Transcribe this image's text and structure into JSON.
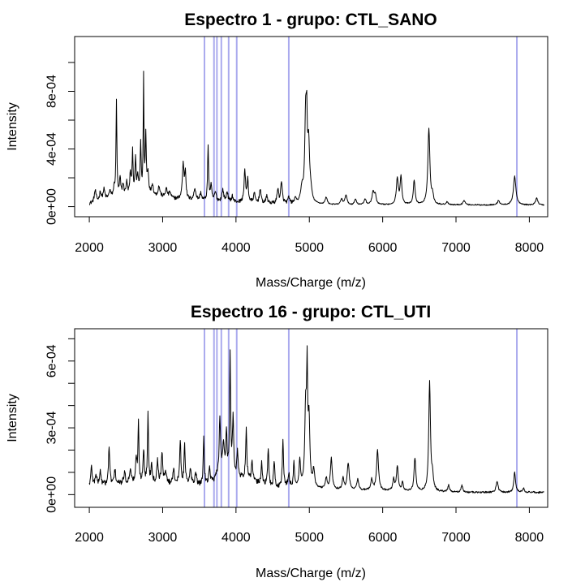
{
  "colors": {
    "spectrum": "#000000",
    "marker_lines": "#aaaaee",
    "background": "#ffffff"
  },
  "chart_data": [
    {
      "type": "line",
      "title": "Espectro  1 - grupo:  CTL_SANO",
      "xlabel": "Mass/Charge (m/z)",
      "ylabel": "Intensity",
      "xlim": [
        1800,
        8250
      ],
      "ylim": [
        -7e-05,
        0.00118
      ],
      "xticks": [
        2000,
        3000,
        4000,
        5000,
        6000,
        7000,
        8000
      ],
      "yticks": [
        0,
        0.0002,
        0.0004,
        0.0006,
        0.0008,
        0.001
      ],
      "ytick_labels": [
        {
          "value": 0,
          "label": "0e+00"
        },
        {
          "value": 0.0004,
          "label": "4e-04"
        },
        {
          "value": 0.0008,
          "label": "8e-04"
        }
      ],
      "baseline": [
        [
          2000,
          2e-05
        ],
        [
          2300,
          6e-05
        ],
        [
          2700,
          8e-05
        ],
        [
          3200,
          5e-05
        ],
        [
          3500,
          4e-05
        ],
        [
          4000,
          3e-05
        ],
        [
          4500,
          2e-05
        ],
        [
          5500,
          1e-05
        ],
        [
          6500,
          1.2e-05
        ],
        [
          8200,
          1e-05
        ]
      ],
      "peaks": [
        {
          "x": 2080,
          "h": 8e-05,
          "w": 14
        },
        {
          "x": 2150,
          "h": 6e-05,
          "w": 12
        },
        {
          "x": 2200,
          "h": 7e-05,
          "w": 14
        },
        {
          "x": 2280,
          "h": 5e-05,
          "w": 12
        },
        {
          "x": 2340,
          "h": 6e-05,
          "w": 14
        },
        {
          "x": 2370,
          "h": 0.00066,
          "w": 7
        },
        {
          "x": 2420,
          "h": 0.00012,
          "w": 10
        },
        {
          "x": 2460,
          "h": 8e-05,
          "w": 12
        },
        {
          "x": 2510,
          "h": 9e-05,
          "w": 12
        },
        {
          "x": 2560,
          "h": 0.00015,
          "w": 10
        },
        {
          "x": 2590,
          "h": 0.0003,
          "w": 8
        },
        {
          "x": 2630,
          "h": 0.00025,
          "w": 8
        },
        {
          "x": 2660,
          "h": 0.00012,
          "w": 10
        },
        {
          "x": 2700,
          "h": 0.00035,
          "w": 8
        },
        {
          "x": 2740,
          "h": 0.0008,
          "w": 6
        },
        {
          "x": 2770,
          "h": 0.0004,
          "w": 8
        },
        {
          "x": 2800,
          "h": 0.00015,
          "w": 12
        },
        {
          "x": 2860,
          "h": 8e-05,
          "w": 14
        },
        {
          "x": 2950,
          "h": 7e-05,
          "w": 16
        },
        {
          "x": 3050,
          "h": 6e-05,
          "w": 16
        },
        {
          "x": 3100,
          "h": 4e-05,
          "w": 14
        },
        {
          "x": 3280,
          "h": 0.00024,
          "w": 14
        },
        {
          "x": 3310,
          "h": 0.00018,
          "w": 10
        },
        {
          "x": 3440,
          "h": 8e-05,
          "w": 16
        },
        {
          "x": 3520,
          "h": 5e-05,
          "w": 14
        },
        {
          "x": 3620,
          "h": 0.00038,
          "w": 8
        },
        {
          "x": 3660,
          "h": 0.0001,
          "w": 12
        },
        {
          "x": 3720,
          "h": 6e-05,
          "w": 14
        },
        {
          "x": 3820,
          "h": 8e-05,
          "w": 14
        },
        {
          "x": 3880,
          "h": 7e-05,
          "w": 12
        },
        {
          "x": 3950,
          "h": 4e-05,
          "w": 12
        },
        {
          "x": 4120,
          "h": 0.00022,
          "w": 12
        },
        {
          "x": 4160,
          "h": 0.00016,
          "w": 10
        },
        {
          "x": 4250,
          "h": 6e-05,
          "w": 14
        },
        {
          "x": 4330,
          "h": 0.0001,
          "w": 12
        },
        {
          "x": 4420,
          "h": 5e-05,
          "w": 12
        },
        {
          "x": 4570,
          "h": 0.0001,
          "w": 12
        },
        {
          "x": 4620,
          "h": 0.00014,
          "w": 14
        },
        {
          "x": 4720,
          "h": 4e-05,
          "w": 12
        },
        {
          "x": 4810,
          "h": 4e-05,
          "w": 12
        },
        {
          "x": 4900,
          "h": 0.0001,
          "w": 20
        },
        {
          "x": 4950,
          "h": 0.0006,
          "w": 14
        },
        {
          "x": 4965,
          "h": 0.00038,
          "w": 8
        },
        {
          "x": 4990,
          "h": 0.0004,
          "w": 16
        },
        {
          "x": 5020,
          "h": 6e-05,
          "w": 18
        },
        {
          "x": 5230,
          "h": 5e-05,
          "w": 16
        },
        {
          "x": 5440,
          "h": 4e-05,
          "w": 16
        },
        {
          "x": 5500,
          "h": 7e-05,
          "w": 16
        },
        {
          "x": 5630,
          "h": 4e-05,
          "w": 16
        },
        {
          "x": 5760,
          "h": 4e-05,
          "w": 16
        },
        {
          "x": 5870,
          "h": 9e-05,
          "w": 18
        },
        {
          "x": 5900,
          "h": 6e-05,
          "w": 14
        },
        {
          "x": 6200,
          "h": 0.00018,
          "w": 16
        },
        {
          "x": 6250,
          "h": 0.00019,
          "w": 14
        },
        {
          "x": 6430,
          "h": 0.00017,
          "w": 14
        },
        {
          "x": 6630,
          "h": 0.00053,
          "w": 16
        },
        {
          "x": 6680,
          "h": 6e-05,
          "w": 14
        },
        {
          "x": 6880,
          "h": 2e-05,
          "w": 16
        },
        {
          "x": 7110,
          "h": 3e-05,
          "w": 18
        },
        {
          "x": 7580,
          "h": 3e-05,
          "w": 18
        },
        {
          "x": 7800,
          "h": 0.0002,
          "w": 20
        },
        {
          "x": 8100,
          "h": 5e-05,
          "w": 18
        }
      ],
      "markers_x": [
        3570,
        3700,
        3740,
        3800,
        3900,
        4010,
        4720,
        7830
      ]
    },
    {
      "type": "line",
      "title": "Espectro  16 - grupo:  CTL_UTI",
      "xlabel": "Mass/Charge (m/z)",
      "ylabel": "Intensity",
      "xlim": [
        1800,
        8250
      ],
      "ylim": [
        -5.7e-05,
        0.000745
      ],
      "xticks": [
        2000,
        3000,
        4000,
        5000,
        6000,
        7000,
        8000
      ],
      "yticks": [
        0,
        0.0001,
        0.0002,
        0.0003,
        0.0004,
        0.0005,
        0.0006,
        0.0007
      ],
      "ytick_labels": [
        {
          "value": 0,
          "label": "0e+00"
        },
        {
          "value": 0.0003,
          "label": "3e-04"
        },
        {
          "value": 0.0006,
          "label": "6e-04"
        }
      ],
      "baseline": [
        [
          2000,
          4e-05
        ],
        [
          2500,
          5e-05
        ],
        [
          3000,
          5e-05
        ],
        [
          3500,
          4e-05
        ],
        [
          3700,
          6e-05
        ],
        [
          3800,
          0.00012
        ],
        [
          4000,
          8e-05
        ],
        [
          4500,
          3e-05
        ],
        [
          5500,
          2e-05
        ],
        [
          7000,
          1e-05
        ],
        [
          8200,
          1e-05
        ]
      ],
      "peaks": [
        {
          "x": 2030,
          "h": 9e-05,
          "w": 10
        },
        {
          "x": 2090,
          "h": 5e-05,
          "w": 12
        },
        {
          "x": 2150,
          "h": 6e-05,
          "w": 12
        },
        {
          "x": 2270,
          "h": 0.00017,
          "w": 10
        },
        {
          "x": 2350,
          "h": 6e-05,
          "w": 12
        },
        {
          "x": 2480,
          "h": 5e-05,
          "w": 12
        },
        {
          "x": 2560,
          "h": 7e-05,
          "w": 12
        },
        {
          "x": 2640,
          "h": 0.0001,
          "w": 12
        },
        {
          "x": 2670,
          "h": 0.00026,
          "w": 8
        },
        {
          "x": 2740,
          "h": 0.00015,
          "w": 10
        },
        {
          "x": 2800,
          "h": 0.00031,
          "w": 8
        },
        {
          "x": 2850,
          "h": 8e-05,
          "w": 12
        },
        {
          "x": 2930,
          "h": 0.0001,
          "w": 12
        },
        {
          "x": 2990,
          "h": 0.00014,
          "w": 10
        },
        {
          "x": 3040,
          "h": 6e-05,
          "w": 12
        },
        {
          "x": 3150,
          "h": 7e-05,
          "w": 12
        },
        {
          "x": 3240,
          "h": 0.0002,
          "w": 10
        },
        {
          "x": 3300,
          "h": 0.00017,
          "w": 10
        },
        {
          "x": 3380,
          "h": 7e-05,
          "w": 12
        },
        {
          "x": 3450,
          "h": 6e-05,
          "w": 12
        },
        {
          "x": 3560,
          "h": 0.00022,
          "w": 8
        },
        {
          "x": 3640,
          "h": 6e-05,
          "w": 12
        },
        {
          "x": 3780,
          "h": 0.00024,
          "w": 10
        },
        {
          "x": 3830,
          "h": 0.00012,
          "w": 10
        },
        {
          "x": 3870,
          "h": 0.00018,
          "w": 8
        },
        {
          "x": 3920,
          "h": 0.00052,
          "w": 8
        },
        {
          "x": 3960,
          "h": 0.00025,
          "w": 10
        },
        {
          "x": 4020,
          "h": 0.00011,
          "w": 10
        },
        {
          "x": 4140,
          "h": 0.00022,
          "w": 10
        },
        {
          "x": 4220,
          "h": 8e-05,
          "w": 12
        },
        {
          "x": 4350,
          "h": 0.0001,
          "w": 10
        },
        {
          "x": 4440,
          "h": 0.00016,
          "w": 10
        },
        {
          "x": 4520,
          "h": 0.00012,
          "w": 10
        },
        {
          "x": 4640,
          "h": 0.00021,
          "w": 10
        },
        {
          "x": 4720,
          "h": 6e-05,
          "w": 12
        },
        {
          "x": 4790,
          "h": 0.00011,
          "w": 10
        },
        {
          "x": 4870,
          "h": 0.00012,
          "w": 12
        },
        {
          "x": 4950,
          "h": 0.00035,
          "w": 14
        },
        {
          "x": 4970,
          "h": 0.00045,
          "w": 8
        },
        {
          "x": 4995,
          "h": 0.0003,
          "w": 14
        },
        {
          "x": 5060,
          "h": 8e-05,
          "w": 14
        },
        {
          "x": 5230,
          "h": 5e-05,
          "w": 14
        },
        {
          "x": 5300,
          "h": 0.00014,
          "w": 14
        },
        {
          "x": 5460,
          "h": 5e-05,
          "w": 14
        },
        {
          "x": 5530,
          "h": 0.00012,
          "w": 16
        },
        {
          "x": 5660,
          "h": 5e-05,
          "w": 14
        },
        {
          "x": 5850,
          "h": 5e-05,
          "w": 14
        },
        {
          "x": 5930,
          "h": 0.00018,
          "w": 16
        },
        {
          "x": 6150,
          "h": 5e-05,
          "w": 14
        },
        {
          "x": 6200,
          "h": 0.00011,
          "w": 14
        },
        {
          "x": 6270,
          "h": 4e-05,
          "w": 12
        },
        {
          "x": 6440,
          "h": 0.00015,
          "w": 14
        },
        {
          "x": 6640,
          "h": 0.00049,
          "w": 14
        },
        {
          "x": 6680,
          "h": 6e-05,
          "w": 14
        },
        {
          "x": 6900,
          "h": 3e-05,
          "w": 14
        },
        {
          "x": 7080,
          "h": 3e-05,
          "w": 14
        },
        {
          "x": 7560,
          "h": 5e-05,
          "w": 16
        },
        {
          "x": 7800,
          "h": 9e-05,
          "w": 14
        },
        {
          "x": 7920,
          "h": 2e-05,
          "w": 14
        }
      ],
      "markers_x": [
        3570,
        3700,
        3740,
        3800,
        3900,
        4010,
        4720,
        7830
      ]
    }
  ]
}
